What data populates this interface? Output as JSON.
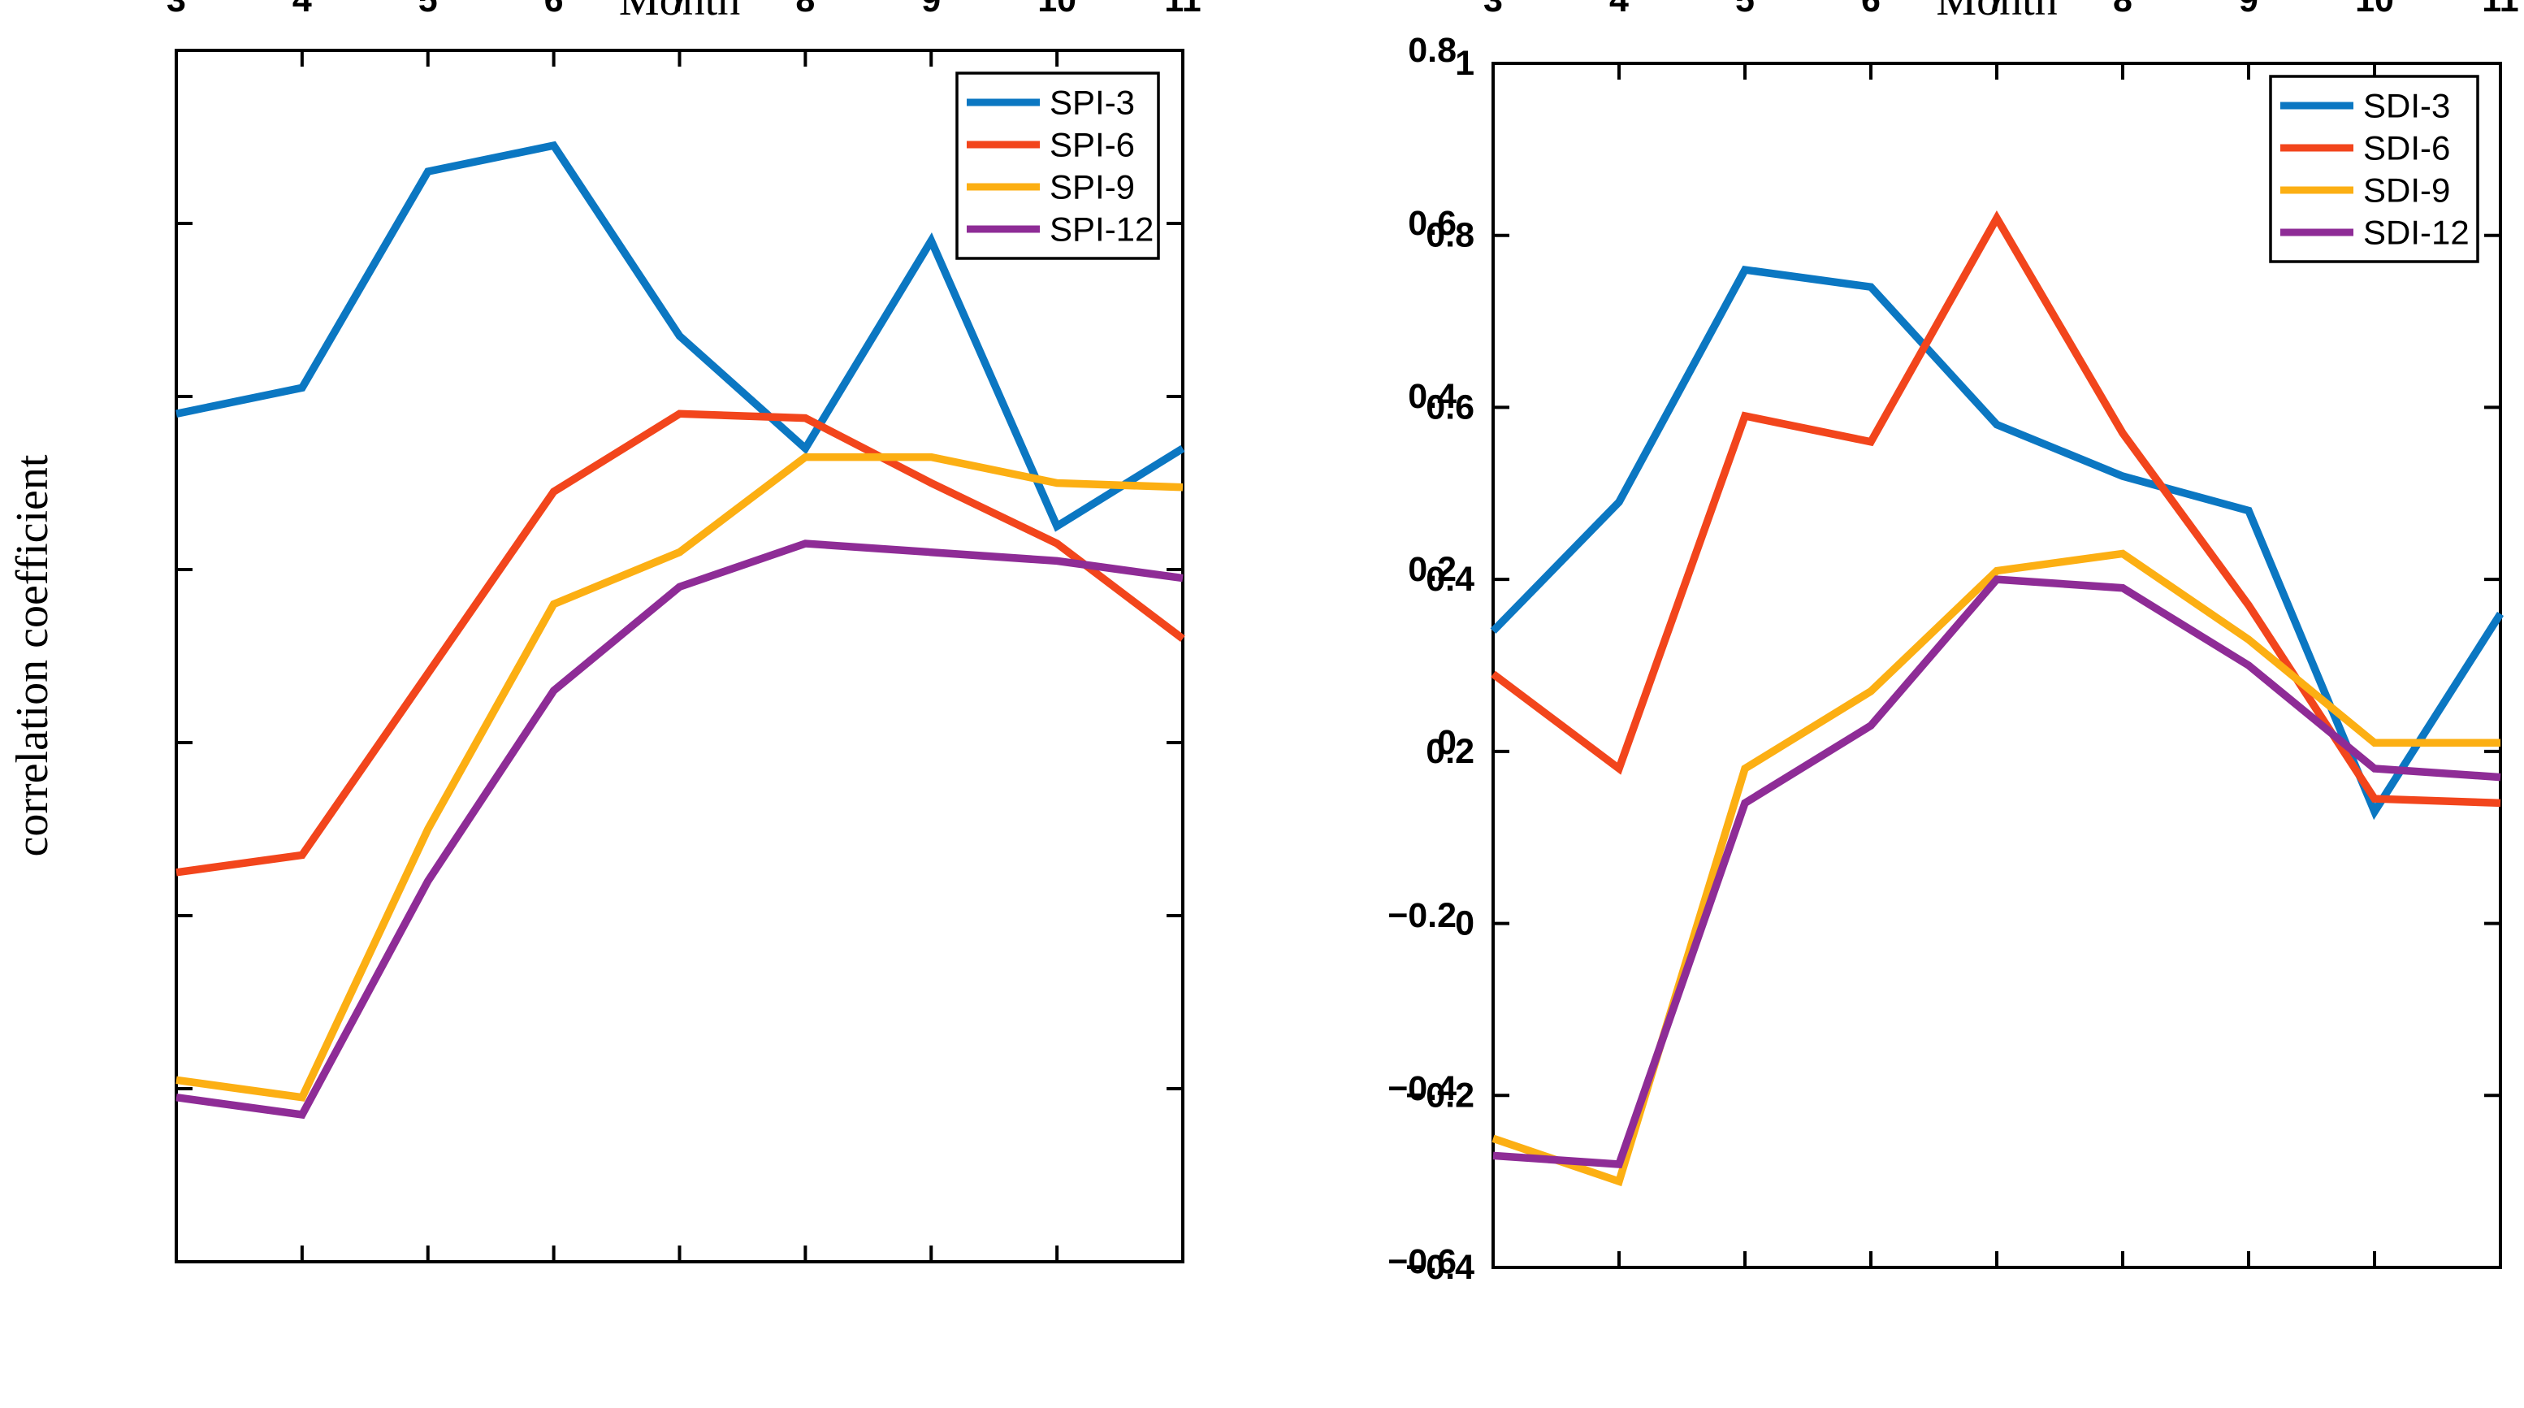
{
  "figure": {
    "background": "#ffffff",
    "axis_color": "#000000",
    "tick_label_color": "#000000"
  },
  "chart_data": [
    {
      "id": "spi",
      "type": "line",
      "title": "",
      "xlabel": "Month",
      "ylabel": "correlation coefficient",
      "x": [
        3,
        4,
        5,
        6,
        7,
        8,
        9,
        10,
        11
      ],
      "xlim": [
        3,
        11
      ],
      "ylim": [
        -0.6,
        0.8
      ],
      "xticks": [
        3,
        4,
        5,
        6,
        7,
        8,
        9,
        10,
        11
      ],
      "yticks": [
        0.8,
        0.6,
        0.4,
        0.2,
        0,
        -0.2,
        -0.4,
        -0.6
      ],
      "grid": false,
      "legend_position": "top-right",
      "series": [
        {
          "name": "SPI-3",
          "color": "#0b77c2",
          "values": [
            0.38,
            0.41,
            0.66,
            0.69,
            0.47,
            0.34,
            0.58,
            0.25,
            0.34
          ]
        },
        {
          "name": "SPI-6",
          "color": "#f2451c",
          "values": [
            -0.15,
            -0.13,
            0.08,
            0.29,
            0.38,
            0.375,
            0.3,
            0.23,
            0.12
          ]
        },
        {
          "name": "SPI-9",
          "color": "#fcaf13",
          "values": [
            -0.39,
            -0.41,
            -0.1,
            0.16,
            0.22,
            0.33,
            0.33,
            0.3,
            0.295
          ]
        },
        {
          "name": "SPI-12",
          "color": "#8e2c96",
          "values": [
            -0.41,
            -0.43,
            -0.16,
            0.06,
            0.18,
            0.23,
            0.22,
            0.21,
            0.19
          ]
        }
      ]
    },
    {
      "id": "sdi",
      "type": "line",
      "title": "",
      "xlabel": "Month",
      "ylabel": "",
      "x": [
        3,
        4,
        5,
        6,
        7,
        8,
        9,
        10,
        11
      ],
      "xlim": [
        3,
        11
      ],
      "ylim": [
        -0.4,
        1.0
      ],
      "xticks": [
        3,
        4,
        5,
        6,
        7,
        8,
        9,
        10,
        11
      ],
      "yticks": [
        1,
        0.8,
        0.6,
        0.4,
        0.2,
        0,
        -0.2,
        -0.4
      ],
      "grid": false,
      "legend_position": "top-right",
      "series": [
        {
          "name": "SDI-3",
          "color": "#0b77c2",
          "values": [
            0.34,
            0.49,
            0.76,
            0.74,
            0.58,
            0.52,
            0.48,
            0.13,
            0.36
          ]
        },
        {
          "name": "SDI-6",
          "color": "#f2451c",
          "values": [
            0.29,
            0.18,
            0.59,
            0.56,
            0.82,
            0.57,
            0.37,
            0.145,
            0.14
          ]
        },
        {
          "name": "SDI-9",
          "color": "#fcaf13",
          "values": [
            -0.25,
            -0.3,
            0.18,
            0.27,
            0.41,
            0.43,
            0.33,
            0.21,
            0.21
          ]
        },
        {
          "name": "SDI-12",
          "color": "#8e2c96",
          "values": [
            -0.27,
            -0.28,
            0.14,
            0.23,
            0.4,
            0.39,
            0.3,
            0.18,
            0.17
          ]
        }
      ]
    }
  ]
}
